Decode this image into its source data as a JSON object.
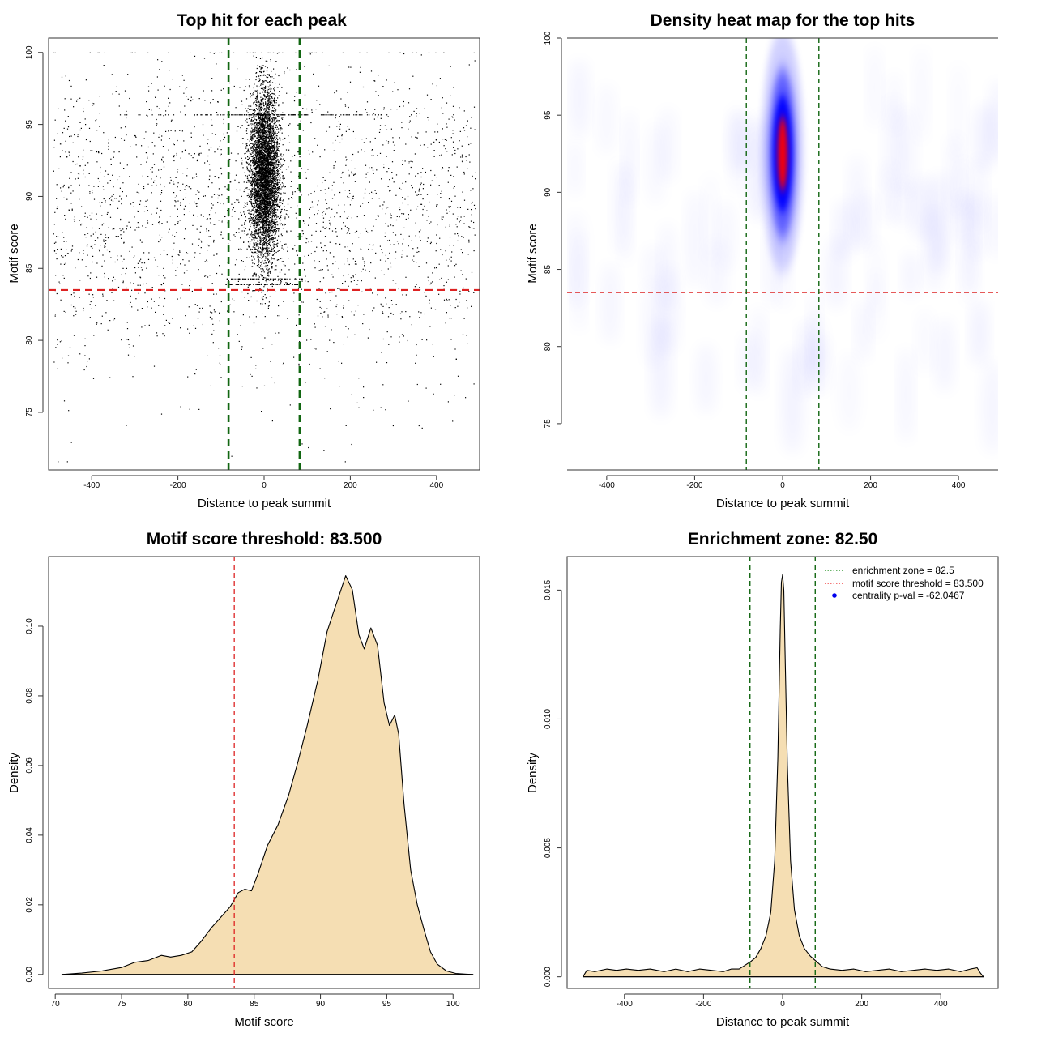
{
  "chart_data": [
    {
      "id": "scatter",
      "type": "scatter",
      "title": "Top hit for each peak",
      "xlabel": "Distance to peak summit",
      "ylabel": "Motif score",
      "xlim": [
        -500,
        500
      ],
      "ylim": [
        71,
        101
      ],
      "xticks": [
        -400,
        -200,
        0,
        200,
        400
      ],
      "yticks": [
        75,
        80,
        85,
        90,
        95,
        100
      ],
      "threshold": 83.5,
      "zone": [
        -82.5,
        82.5
      ],
      "background_uniform": {
        "n": 2300,
        "x": [
          -490,
          490
        ],
        "y_mean": 88.5,
        "y_sd": 5.5
      },
      "central_cluster": {
        "n": 5200,
        "x_sd": 17,
        "y_mean": 91.5,
        "y_sd": 2.9
      },
      "horizontal_bands": [
        95.7,
        84.3,
        83.9
      ],
      "mark_color": "#000000",
      "threshold_color": "#dd2222",
      "zone_color": "#116611"
    },
    {
      "id": "heatmap",
      "type": "heatmap",
      "title": "Density heat map for the top hits",
      "xlabel": "Distance to peak summit",
      "ylabel": "Motif score",
      "xlim": [
        -490,
        490
      ],
      "ylim": [
        72,
        100
      ],
      "xticks": [
        -400,
        -200,
        0,
        200,
        400
      ],
      "yticks": [
        75,
        80,
        85,
        90,
        95,
        100
      ],
      "threshold": 83.5,
      "zone": [
        -82.5,
        82.5
      ],
      "hotspot": {
        "x": 0,
        "y": 92.5
      },
      "colors": [
        "#ffffff",
        "#0000ff",
        "#ff0000"
      ]
    },
    {
      "id": "score-density",
      "type": "area",
      "title": "Motif score threshold: 83.500",
      "xlabel": "Motif score",
      "ylabel": "Density",
      "xlim": [
        69.5,
        102
      ],
      "ylim": [
        -0.004,
        0.12
      ],
      "xticks": [
        70,
        75,
        80,
        85,
        90,
        95,
        100
      ],
      "yticks": [
        0.0,
        0.02,
        0.04,
        0.06,
        0.08,
        0.1
      ],
      "ytick_labels": [
        "0.00",
        "0.02",
        "0.04",
        "0.06",
        "0.08",
        "0.10"
      ],
      "threshold": 83.5,
      "x": [
        70.5,
        72,
        73.5,
        75,
        76,
        77,
        78,
        78.7,
        79.5,
        80.3,
        81,
        81.8,
        82.5,
        83.2,
        83.8,
        84.3,
        84.8,
        85.3,
        86,
        86.8,
        87.6,
        88.3,
        89,
        89.8,
        90.5,
        91.2,
        91.9,
        92.4,
        92.9,
        93.3,
        93.8,
        94.3,
        94.8,
        95.2,
        95.6,
        95.9,
        96.3,
        96.8,
        97.3,
        97.8,
        98.3,
        98.8,
        99.5,
        100.2,
        101,
        101.5
      ],
      "y": [
        0,
        0.0004,
        0.001,
        0.002,
        0.0035,
        0.004,
        0.0055,
        0.005,
        0.0055,
        0.0065,
        0.0095,
        0.0135,
        0.0165,
        0.0195,
        0.0235,
        0.0245,
        0.024,
        0.029,
        0.037,
        0.043,
        0.0515,
        0.061,
        0.0715,
        0.0845,
        0.0985,
        0.1065,
        0.1145,
        0.1105,
        0.0975,
        0.0935,
        0.0995,
        0.0945,
        0.078,
        0.0715,
        0.0745,
        0.069,
        0.049,
        0.03,
        0.02,
        0.013,
        0.0065,
        0.003,
        0.001,
        0.0003,
        0.0001,
        0
      ],
      "fill_color": "#f5deb3",
      "threshold_color": "#dd2222"
    },
    {
      "id": "distance-density",
      "type": "area",
      "title": "Enrichment zone: 82.50",
      "xlabel": "Distance to peak summit",
      "ylabel": "Density",
      "xlim": [
        -545,
        545
      ],
      "ylim": [
        -0.00045,
        0.0163
      ],
      "xticks": [
        -400,
        -200,
        0,
        200,
        400
      ],
      "yticks": [
        0.0,
        0.005,
        0.01,
        0.015
      ],
      "ytick_labels": [
        "0.000",
        "0.005",
        "0.010",
        "0.015"
      ],
      "zone": [
        -82.5,
        82.5
      ],
      "x": [
        -505,
        -495,
        -475,
        -445,
        -420,
        -395,
        -365,
        -335,
        -300,
        -270,
        -240,
        -210,
        -180,
        -150,
        -130,
        -110,
        -95,
        -80,
        -68,
        -55,
        -42,
        -30,
        -20,
        -12,
        -6,
        -3,
        0,
        3,
        6,
        12,
        20,
        30,
        42,
        55,
        70,
        85,
        100,
        120,
        150,
        180,
        210,
        240,
        270,
        300,
        330,
        360,
        390,
        420,
        450,
        475,
        492,
        500,
        508
      ],
      "y": [
        0,
        0.00025,
        0.0002,
        0.0003,
        0.00025,
        0.0003,
        0.00025,
        0.0003,
        0.0002,
        0.0003,
        0.0002,
        0.0003,
        0.00025,
        0.0002,
        0.0003,
        0.0003,
        0.00045,
        0.0006,
        0.00075,
        0.0011,
        0.0016,
        0.0025,
        0.0045,
        0.0085,
        0.0135,
        0.0153,
        0.0156,
        0.015,
        0.0128,
        0.0082,
        0.0045,
        0.0026,
        0.0016,
        0.0011,
        0.0008,
        0.0006,
        0.0004,
        0.0003,
        0.00025,
        0.0003,
        0.0002,
        0.00025,
        0.0003,
        0.0002,
        0.00025,
        0.0003,
        0.00025,
        0.0003,
        0.0002,
        0.0003,
        0.00035,
        0.00015,
        0
      ],
      "fill_color": "#f5deb3",
      "zone_color": "#116611",
      "legend": [
        {
          "label": "enrichment zone = 82.5",
          "style": "dotted-line",
          "color": "#118811"
        },
        {
          "label": "motif score threshold = 83.500",
          "style": "dotted-line",
          "color": "#ee2222"
        },
        {
          "label": "centrality p-val = -62.0467",
          "style": "point",
          "color": "#0000ee"
        }
      ],
      "legend_position": "top-right"
    }
  ]
}
